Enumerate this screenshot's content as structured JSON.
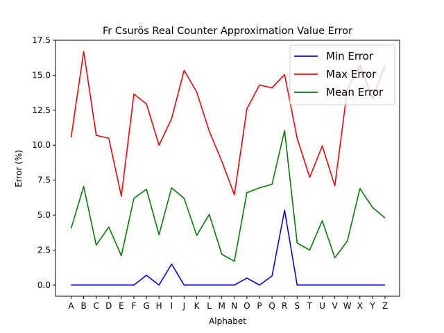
{
  "chart_data": {
    "type": "line",
    "title": "Fr Csurös Real Counter Approximation Value Error",
    "xlabel": "Alphabet",
    "ylabel": "Error (%)",
    "ylim": [
      -0.8,
      17.5
    ],
    "yticks": [
      "0.0",
      "2.5",
      "5.0",
      "7.5",
      "10.0",
      "12.5",
      "15.0",
      "17.5"
    ],
    "grid": false,
    "legend_position": "top-right",
    "categories": [
      "A",
      "B",
      "C",
      "D",
      "E",
      "F",
      "G",
      "H",
      "I",
      "J",
      "K",
      "L",
      "M",
      "N",
      "O",
      "P",
      "Q",
      "R",
      "S",
      "T",
      "U",
      "V",
      "W",
      "X",
      "Y",
      "Z"
    ],
    "series": [
      {
        "name": "Min Error",
        "color": "#0000ff",
        "values": [
          0,
          0,
          0,
          0,
          0,
          0,
          0.7,
          0,
          1.5,
          0,
          0,
          0,
          0,
          0,
          0.5,
          0,
          0.65,
          5.35,
          0,
          0,
          0,
          0,
          0,
          0,
          0,
          0
        ]
      },
      {
        "name": "Max Error",
        "color": "#ff0000",
        "values": [
          10.55,
          16.7,
          10.7,
          10.5,
          6.35,
          13.65,
          12.95,
          10.0,
          11.9,
          15.35,
          13.8,
          11.0,
          8.85,
          6.45,
          12.6,
          14.3,
          14.1,
          15.05,
          10.5,
          7.7,
          9.95,
          7.1,
          14.0,
          15.7,
          13.35,
          15.7
        ]
      },
      {
        "name": "Mean Error",
        "color": "#008000",
        "values": [
          4.05,
          7.05,
          2.85,
          4.15,
          2.1,
          6.2,
          6.85,
          3.6,
          6.95,
          6.2,
          3.55,
          5.05,
          2.2,
          1.7,
          6.6,
          6.95,
          7.2,
          11.05,
          3.0,
          2.5,
          4.6,
          1.95,
          3.15,
          6.9,
          5.55,
          4.8
        ]
      }
    ]
  }
}
